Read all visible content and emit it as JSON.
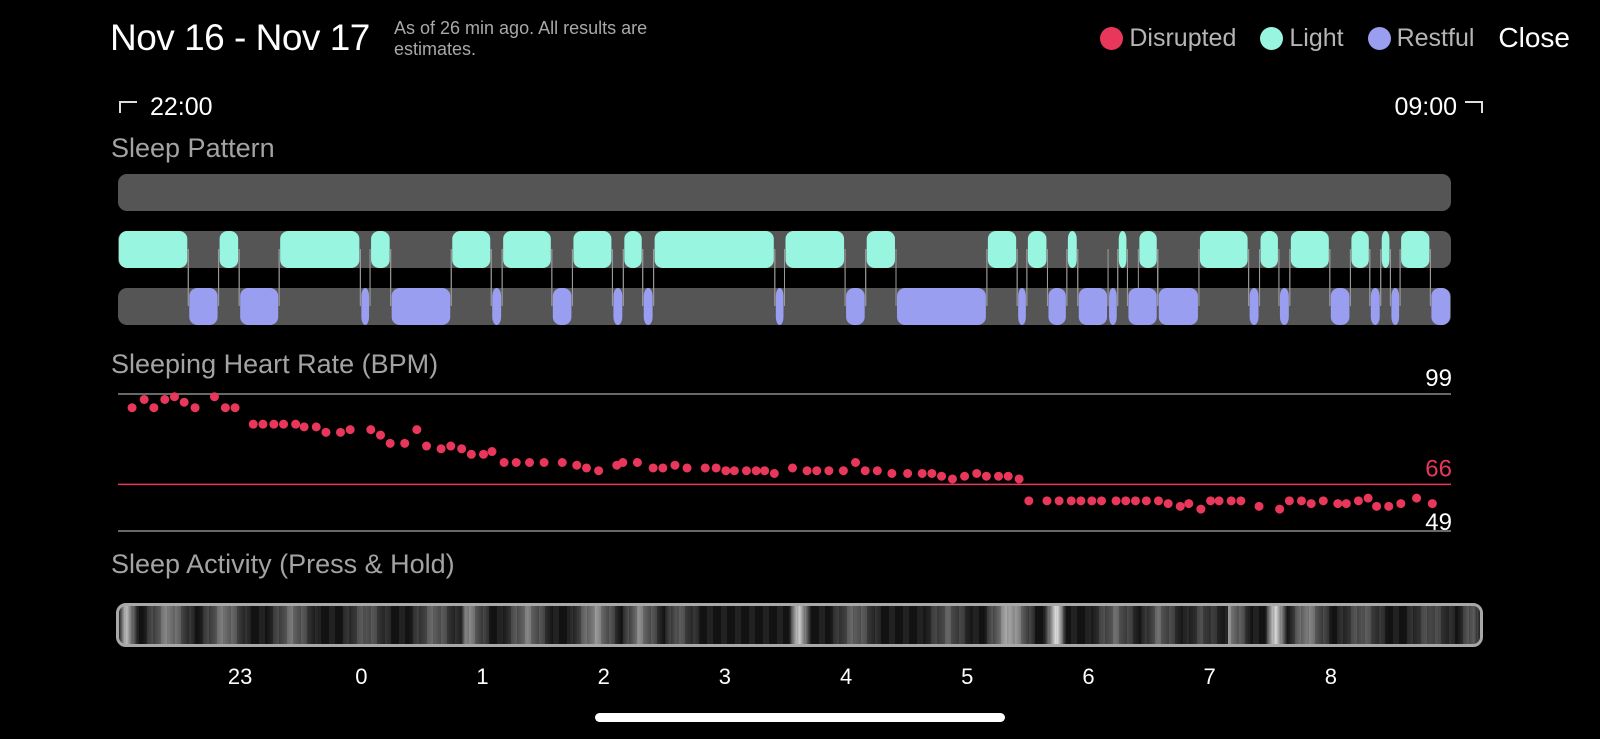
{
  "header": {
    "date_range": "Nov 16 - Nov 17",
    "note": "As of 26 min ago. All results are estimates.",
    "close_label": "Close"
  },
  "legend": [
    {
      "label": "Disrupted",
      "color": "#e8375a"
    },
    {
      "label": "Light",
      "color": "#98f5e0"
    },
    {
      "label": "Restful",
      "color": "#9a9ef0"
    }
  ],
  "time_range": {
    "start": "22:00",
    "end": "09:00"
  },
  "sections": {
    "sleep_pattern": "Sleep Pattern",
    "heart_rate": "Sleeping Heart Rate (BPM)",
    "activity": "Sleep Activity (Press & Hold)"
  },
  "chart_data": [
    {
      "type": "timeline",
      "title": "Sleep Pattern",
      "x_unit": "hours after 22:00",
      "xlim": [
        0,
        11
      ],
      "series": [
        {
          "name": "Disrupted",
          "color": "#e8375a",
          "segments": []
        },
        {
          "name": "Light",
          "color": "#98f5e0",
          "segments": [
            [
              0.0,
              0.58
            ],
            [
              0.83,
              1.0
            ],
            [
              1.33,
              2.0
            ],
            [
              2.08,
              2.25
            ],
            [
              2.75,
              3.08
            ],
            [
              3.17,
              3.58
            ],
            [
              3.75,
              4.08
            ],
            [
              4.17,
              4.33
            ],
            [
              4.42,
              5.42
            ],
            [
              5.5,
              6.0
            ],
            [
              6.17,
              6.42
            ],
            [
              7.17,
              7.42
            ],
            [
              7.5,
              7.67
            ],
            [
              7.83,
              7.92
            ],
            [
              8.25,
              8.33
            ],
            [
              8.42,
              8.58
            ],
            [
              8.92,
              9.33
            ],
            [
              9.42,
              9.58
            ],
            [
              9.67,
              10.0
            ],
            [
              10.17,
              10.33
            ],
            [
              10.42,
              10.5
            ],
            [
              10.58,
              10.83
            ]
          ]
        },
        {
          "name": "Restful",
          "color": "#9a9ef0",
          "segments": [
            [
              0.58,
              0.83
            ],
            [
              1.0,
              1.33
            ],
            [
              2.0,
              2.08
            ],
            [
              2.25,
              2.75
            ],
            [
              3.08,
              3.17
            ],
            [
              3.58,
              3.75
            ],
            [
              4.08,
              4.17
            ],
            [
              4.33,
              4.42
            ],
            [
              5.42,
              5.5
            ],
            [
              6.0,
              6.17
            ],
            [
              6.42,
              7.17
            ],
            [
              7.42,
              7.5
            ],
            [
              7.67,
              7.83
            ],
            [
              7.92,
              8.17
            ],
            [
              8.17,
              8.25
            ],
            [
              8.33,
              8.58
            ],
            [
              8.58,
              8.92
            ],
            [
              9.33,
              9.42
            ],
            [
              9.58,
              9.67
            ],
            [
              10.0,
              10.17
            ],
            [
              10.33,
              10.42
            ],
            [
              10.5,
              10.58
            ],
            [
              10.83,
              11.0
            ]
          ]
        }
      ]
    },
    {
      "type": "scatter",
      "title": "Sleeping Heart Rate (BPM)",
      "x_unit": "hours after 22:00",
      "xlim": [
        0,
        11
      ],
      "ylim": [
        49,
        99
      ],
      "y_ticks": [
        99,
        66,
        49
      ],
      "average": 66,
      "average_color": "#e8375a",
      "color": "#e8375a",
      "x": [
        0.05,
        0.15,
        0.23,
        0.32,
        0.4,
        0.48,
        0.57,
        0.73,
        0.82,
        0.9,
        1.05,
        1.13,
        1.22,
        1.3,
        1.4,
        1.47,
        1.57,
        1.65,
        1.77,
        1.85,
        2.02,
        2.1,
        2.18,
        2.3,
        2.4,
        2.48,
        2.6,
        2.68,
        2.77,
        2.85,
        2.95,
        3.02,
        3.12,
        3.22,
        3.33,
        3.45,
        3.6,
        3.72,
        3.8,
        3.9,
        4.05,
        4.1,
        4.22,
        4.35,
        4.43,
        4.53,
        4.63,
        4.78,
        4.87,
        4.95,
        5.02,
        5.12,
        5.2,
        5.27,
        5.35,
        5.5,
        5.62,
        5.7,
        5.8,
        5.92,
        6.02,
        6.1,
        6.2,
        6.32,
        6.45,
        6.57,
        6.65,
        6.73,
        6.82,
        6.92,
        7.02,
        7.1,
        7.2,
        7.28,
        7.37,
        7.45,
        7.6,
        7.7,
        7.8,
        7.88,
        7.97,
        8.05,
        8.17,
        8.25,
        8.33,
        8.42,
        8.52,
        8.6,
        8.7,
        8.77,
        8.87,
        8.95,
        9.02,
        9.12,
        9.2,
        9.35,
        9.52,
        9.6,
        9.7,
        9.78,
        9.88,
        10.0,
        10.07,
        10.17,
        10.25,
        10.32,
        10.42,
        10.52,
        10.65,
        10.78
      ],
      "y": [
        94,
        97,
        94,
        97,
        98,
        96,
        94,
        98,
        94,
        94,
        88,
        88,
        88,
        88,
        88,
        87,
        87,
        85,
        85,
        86,
        86,
        84,
        81,
        81,
        86,
        80,
        79,
        80,
        79,
        77,
        77,
        78,
        74,
        74,
        74,
        74,
        74,
        73,
        72,
        71,
        73,
        74,
        74,
        72,
        72,
        73,
        72,
        72,
        72,
        71,
        71,
        71,
        71,
        71,
        70,
        72,
        71,
        71,
        71,
        71,
        74,
        71,
        71,
        70,
        70,
        70,
        70,
        69,
        68,
        69,
        70,
        69,
        69,
        69,
        68,
        60,
        60,
        60,
        60,
        60,
        60,
        60,
        60,
        60,
        60,
        60,
        60,
        59,
        58,
        59,
        57,
        60,
        60,
        60,
        60,
        58,
        57,
        60,
        60,
        59,
        60,
        59,
        59,
        60,
        61,
        58,
        58,
        59,
        61,
        59
      ]
    },
    {
      "type": "heatmap",
      "title": "Sleep Activity (Press & Hold)",
      "x_unit": "hours after 22:00",
      "xlim": [
        0,
        11
      ],
      "x_tick_labels": [
        "23",
        "0",
        "1",
        "2",
        "3",
        "4",
        "5",
        "6",
        "7",
        "8"
      ],
      "bands": [
        {
          "x": 0.06,
          "level": 0.85
        },
        {
          "x": 0.4,
          "level": 0.5
        },
        {
          "x": 0.85,
          "level": 0.45
        },
        {
          "x": 1.4,
          "level": 0.4
        },
        {
          "x": 2.0,
          "level": 0.3
        },
        {
          "x": 2.55,
          "level": 0.35
        },
        {
          "x": 2.8,
          "level": 0.55
        },
        {
          "x": 3.3,
          "level": 0.45
        },
        {
          "x": 3.85,
          "level": 0.55
        },
        {
          "x": 4.2,
          "level": 0.5
        },
        {
          "x": 4.5,
          "level": 0.3
        },
        {
          "x": 5.5,
          "level": 0.92
        },
        {
          "x": 5.95,
          "level": 0.35
        },
        {
          "x": 6.7,
          "level": 0.3
        },
        {
          "x": 7.2,
          "level": 0.7
        },
        {
          "x": 7.57,
          "level": 1.0
        },
        {
          "x": 8.05,
          "level": 0.35
        },
        {
          "x": 8.4,
          "level": 0.35
        },
        {
          "x": 8.75,
          "level": 0.2
        },
        {
          "x": 8.95,
          "level": 0.55
        },
        {
          "x": 9.35,
          "level": 0.98
        },
        {
          "x": 9.6,
          "level": 0.5
        },
        {
          "x": 10.05,
          "level": 0.3
        },
        {
          "x": 10.6,
          "level": 0.25
        },
        {
          "x": 10.95,
          "level": 0.35
        }
      ]
    }
  ]
}
